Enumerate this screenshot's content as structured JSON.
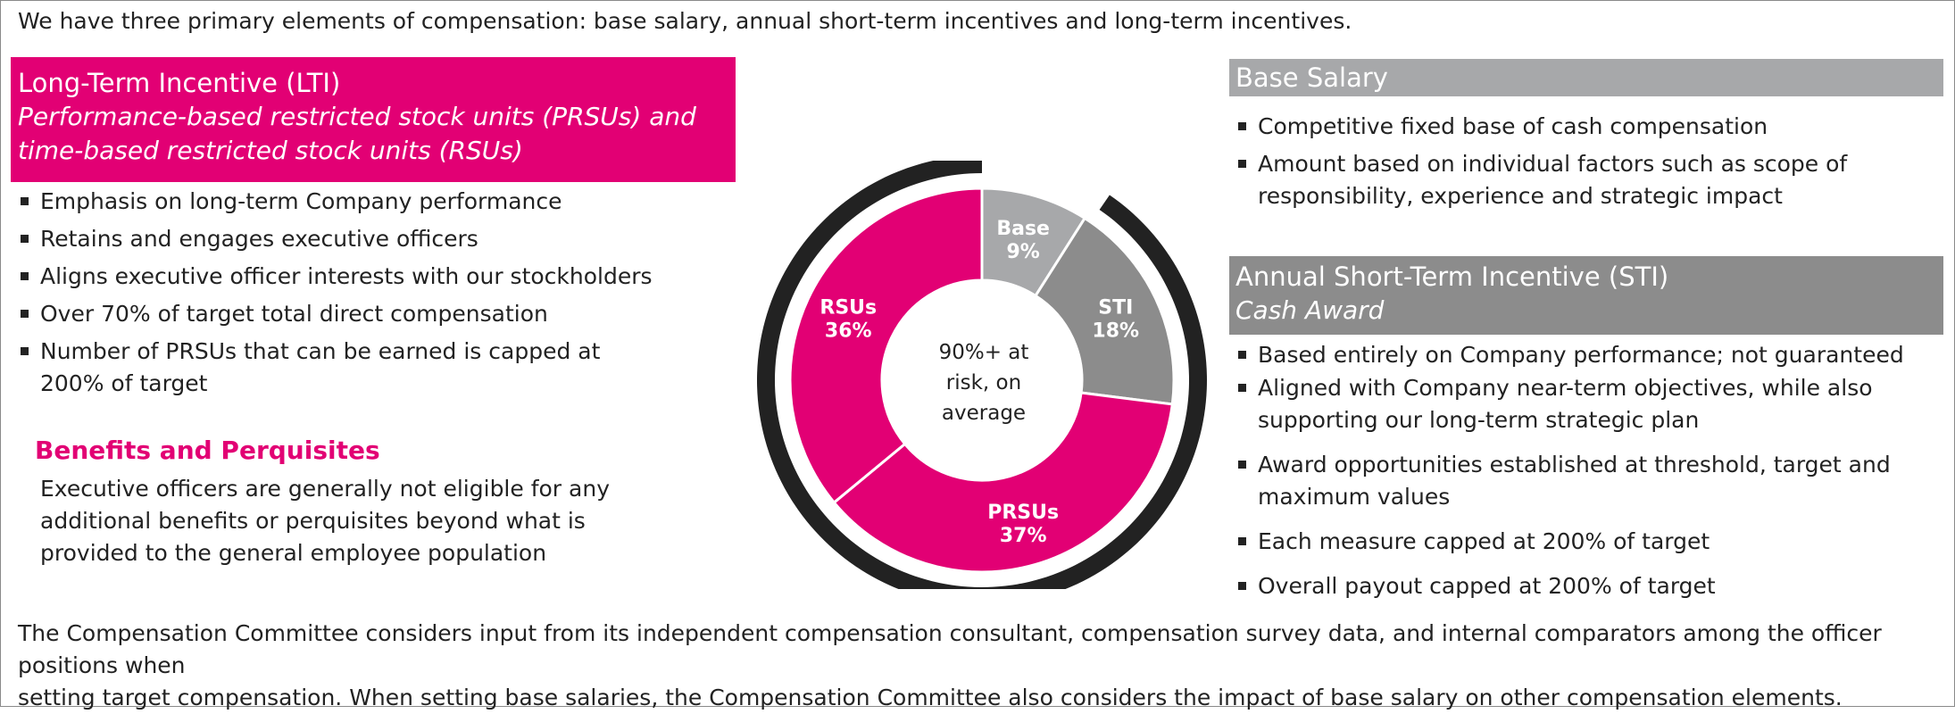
{
  "intro": "We have three primary elements of compensation: base salary, annual short-term incentives and long-term incentives.",
  "lti": {
    "title": "Long-Term Incentive (LTI)",
    "subtitle_line1": "Performance-based restricted stock units (PRSUs) and",
    "subtitle_line2": "time-based restricted stock units (RSUs)",
    "bullets": [
      "Emphasis on long-term Company performance",
      "Retains and engages executive officers",
      "Aligns executive officer interests with our stockholders",
      "Over 70% of target total direct compensation",
      "Number of PRSUs that can be earned is capped at",
      "200% of target"
    ]
  },
  "benefits": {
    "title": "Benefits and Perquisites",
    "lines": [
      "Executive officers are generally not eligible for any",
      "additional benefits or perquisites beyond what is",
      "provided to the general employee population"
    ]
  },
  "base_salary": {
    "title": "Base Salary",
    "bullets": [
      "Competitive fixed base of cash compensation",
      "Amount based on individual factors such as scope of",
      "responsibility, experience and strategic impact"
    ]
  },
  "sti": {
    "title": "Annual Short-Term Incentive (STI)",
    "subtitle": "Cash Award",
    "bullets": [
      "Based entirely on Company performance; not guaranteed",
      "Aligned with Company near-term objectives, while also",
      "supporting our long-term strategic plan",
      "Award opportunities established at threshold, target and",
      "maximum values",
      "Each measure capped at 200% of target",
      "Overall payout capped at 200% of target"
    ]
  },
  "closing": {
    "line1": "The Compensation Committee considers input from its independent compensation consultant, compensation survey data, and internal comparators among the officer positions when",
    "line2": "setting target compensation. When setting base salaries, the Compensation Committee also considers the impact of base salary on other compensation elements."
  },
  "chart_data": {
    "type": "pie",
    "variant": "donut",
    "title": "",
    "center_label": [
      "90%+ at",
      "risk, on",
      "average"
    ],
    "slices": [
      {
        "label": "Base",
        "value": 9,
        "value_label": "9%",
        "color": "#a7a8aa"
      },
      {
        "label": "STI",
        "value": 18,
        "value_label": "18%",
        "color": "#8c8c8c"
      },
      {
        "label": "PRSUs",
        "value": 37,
        "value_label": "37%",
        "color": "#e20074"
      },
      {
        "label": "RSUs",
        "value": 36,
        "value_label": "36%",
        "color": "#e20074"
      }
    ],
    "outer_ring": {
      "label": "at-risk share",
      "start_percent": 9,
      "end_percent": 100,
      "color": "#222222"
    }
  },
  "colors": {
    "magenta": "#e20074",
    "light_gray": "#a7a8aa",
    "dark_gray": "#8c8c8c",
    "ring": "#222222"
  }
}
